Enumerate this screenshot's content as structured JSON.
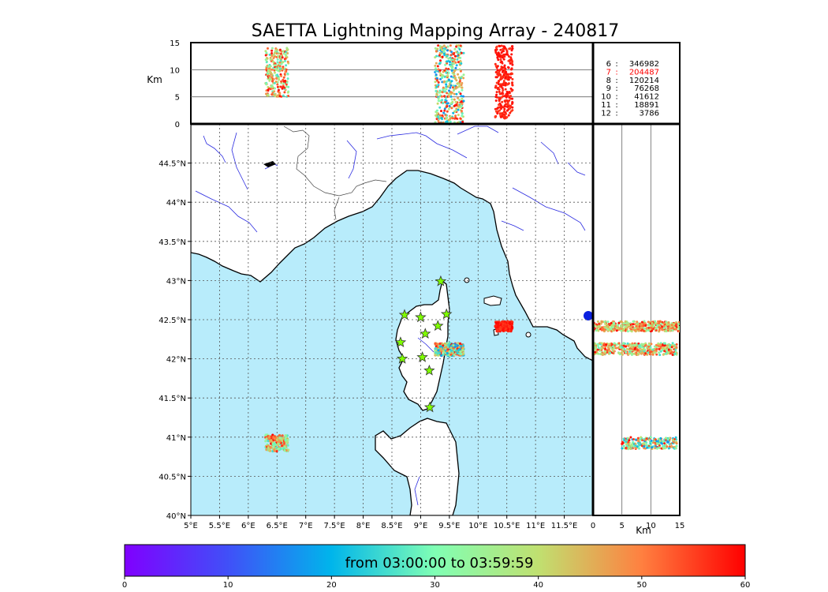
{
  "title": "SAETTA Lightning Mapping Array - 240817",
  "colors": {
    "sea": "#b8ecfb",
    "land": "#ffffff",
    "coast": "#000000",
    "rivers": "#2a2ae0",
    "borders": "#444444",
    "grid": "#555555",
    "star_fill": "#7fff00",
    "highlight_count": "#ff0000"
  },
  "icons": {
    "station": "star-icon"
  },
  "chart_data": {
    "type": "scatter",
    "map": {
      "lon_range": [
        5,
        12
      ],
      "lat_range": [
        40,
        45
      ],
      "lon_ticks": [
        "5°E",
        "5.5°E",
        "6°E",
        "6.5°E",
        "7°E",
        "7.5°E",
        "8°E",
        "8.5°E",
        "9°E",
        "9.5°E",
        "10°E",
        "10.5°E",
        "11°E",
        "11.5°E"
      ],
      "lon_tick_values": [
        5,
        5.5,
        6,
        6.5,
        7,
        7.5,
        8,
        8.5,
        9,
        9.5,
        10,
        10.5,
        11,
        11.5
      ],
      "lat_ticks": [
        "40°N",
        "40.5°N",
        "41°N",
        "41.5°N",
        "42°N",
        "42.5°N",
        "43°N",
        "43.5°N",
        "44°N",
        "44.5°N"
      ],
      "lat_tick_values": [
        40,
        40.5,
        41,
        41.5,
        42,
        42.5,
        43,
        43.5,
        44,
        44.5
      ],
      "grid": true,
      "stations": [
        {
          "lon": 9.35,
          "lat": 42.99
        },
        {
          "lon": 8.72,
          "lat": 42.56
        },
        {
          "lon": 9.0,
          "lat": 42.53
        },
        {
          "lon": 9.45,
          "lat": 42.57
        },
        {
          "lon": 9.3,
          "lat": 42.42
        },
        {
          "lon": 9.08,
          "lat": 42.32
        },
        {
          "lon": 8.65,
          "lat": 42.21
        },
        {
          "lon": 9.03,
          "lat": 42.02
        },
        {
          "lon": 8.68,
          "lat": 42.0
        },
        {
          "lon": 9.15,
          "lat": 41.85
        },
        {
          "lon": 9.16,
          "lat": 41.38
        }
      ],
      "clusters": [
        {
          "lon": [
            6.3,
            6.7
          ],
          "lat": [
            40.82,
            41.03
          ],
          "time_min": [
            25,
            60
          ],
          "n": 180
        },
        {
          "lon": [
            9.25,
            9.75
          ],
          "lat": [
            42.04,
            42.2
          ],
          "time_min": [
            15,
            60
          ],
          "n": 320
        },
        {
          "lon": [
            10.3,
            10.6
          ],
          "lat": [
            42.35,
            42.48
          ],
          "time_min": [
            55,
            60
          ],
          "n": 220
        }
      ]
    },
    "alt_lon": {
      "ylabel": "Km",
      "y_ticks": [
        "0",
        "5",
        "10",
        "15"
      ],
      "y_tick_values": [
        0,
        5,
        10,
        15
      ],
      "ylim": [
        0,
        15
      ],
      "gridlines_at": [
        5,
        10
      ],
      "columns": [
        {
          "lon": [
            6.3,
            6.7
          ],
          "alt": [
            5,
            14
          ],
          "time_min": [
            25,
            60
          ],
          "n": 260
        },
        {
          "lon": [
            9.25,
            9.75
          ],
          "alt": [
            0,
            14.5
          ],
          "time_min": [
            15,
            60
          ],
          "n": 420
        },
        {
          "lon": [
            10.3,
            10.6
          ],
          "alt": [
            1,
            14.5
          ],
          "time_min": [
            55,
            60
          ],
          "n": 300
        }
      ]
    },
    "lat_alt": {
      "xlabel": "Km",
      "x_ticks": [
        "0",
        "5",
        "10",
        "15"
      ],
      "x_tick_values": [
        0,
        5,
        10,
        15
      ],
      "xlim": [
        0,
        15
      ],
      "gridlines_at": [
        5,
        10
      ],
      "bands": [
        {
          "lat": [
            42.35,
            42.48
          ],
          "alt": [
            0,
            15
          ],
          "time_min": [
            30,
            60
          ],
          "n": 420
        },
        {
          "lat": [
            42.05,
            42.2
          ],
          "alt": [
            0,
            14.5
          ],
          "time_min": [
            25,
            60
          ],
          "n": 420
        },
        {
          "lat": [
            40.85,
            41.0
          ],
          "alt": [
            5,
            14.5
          ],
          "time_min": [
            15,
            60
          ],
          "n": 240
        }
      ]
    },
    "altitude_counts": [
      {
        "alt": "6",
        "count": "346982",
        "highlight": false
      },
      {
        "alt": "7",
        "count": "204487",
        "highlight": true
      },
      {
        "alt": "8",
        "count": "120214",
        "highlight": false
      },
      {
        "alt": "9",
        "count": "76268",
        "highlight": false
      },
      {
        "alt": "10",
        "count": "41612",
        "highlight": false
      },
      {
        "alt": "11",
        "count": "18891",
        "highlight": false
      },
      {
        "alt": "12",
        "count": "3786",
        "highlight": false
      }
    ],
    "colorbar": {
      "label": "from 03:00:00 to 03:59:59",
      "range": [
        0,
        60
      ],
      "ticks": [
        "0",
        "10",
        "20",
        "30",
        "40",
        "50",
        "60"
      ],
      "tick_values": [
        0,
        10,
        20,
        30,
        40,
        50,
        60
      ],
      "colormap": "rainbow"
    }
  }
}
